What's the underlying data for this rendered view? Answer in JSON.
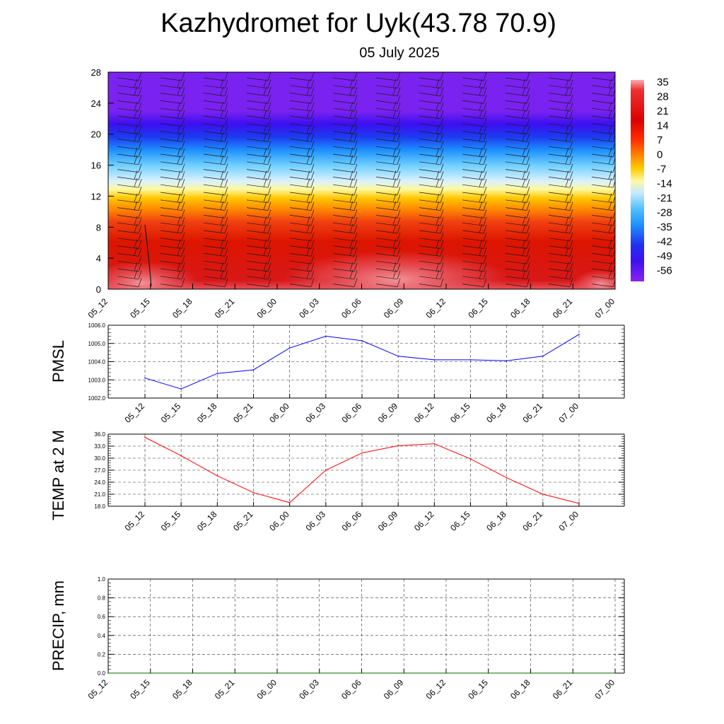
{
  "title": "Kazhydromet for Uyk(43.78 70.9)",
  "subtitle": "05 July 2025",
  "chart_data": [
    {
      "type": "heatmap",
      "categories": [
        "05_12",
        "05_15",
        "05_18",
        "05_21",
        "06_00",
        "06_03",
        "06_06",
        "06_09",
        "06_12",
        "06_15",
        "06_18",
        "06_21",
        "07_00"
      ],
      "yticks": [
        0,
        4,
        8,
        12,
        16,
        20,
        24,
        28
      ],
      "ylim": [
        0,
        28
      ],
      "colorbar": {
        "labels": [
          "35",
          "28",
          "21",
          "14",
          "7",
          "0",
          "-7",
          "-14",
          "-21",
          "-28",
          "-35",
          "-42",
          "-49",
          "-56"
        ]
      },
      "description": "temperature by height with wind barbs"
    },
    {
      "type": "line",
      "ylabel": "PMSL",
      "categories": [
        "05_12",
        "05_15",
        "05_18",
        "05_21",
        "06_00",
        "06_03",
        "06_06",
        "06_09",
        "06_12",
        "06_15",
        "06_18",
        "06_21",
        "07_00"
      ],
      "yticks": [
        "1002.0",
        "1003.0",
        "1004.0",
        "1005.0",
        "1006.0"
      ],
      "ylim": [
        1002.0,
        1006.0
      ],
      "values": [
        1003.1,
        1002.5,
        1003.35,
        1003.55,
        1004.75,
        1005.4,
        1005.15,
        1004.3,
        1004.1,
        1004.1,
        1004.05,
        1004.3,
        1005.5
      ],
      "color": "#0000ff"
    },
    {
      "type": "line",
      "ylabel": "TEMP at 2 M",
      "categories": [
        "05_12",
        "05_15",
        "05_18",
        "05_21",
        "06_00",
        "06_03",
        "06_06",
        "06_09",
        "06_12",
        "06_15",
        "06_18",
        "06_21",
        "07_00"
      ],
      "yticks": [
        "18.0",
        "21.0",
        "24.0",
        "27.0",
        "30.0",
        "33.0",
        "36.0"
      ],
      "ylim": [
        18.0,
        36.0
      ],
      "values": [
        35.2,
        30.6,
        25.6,
        21.4,
        18.9,
        27.0,
        31.3,
        33.1,
        33.6,
        29.8,
        25.1,
        21.0,
        18.7
      ],
      "color": "#ff0000"
    },
    {
      "type": "line",
      "ylabel": "PRECIP, mm",
      "categories": [
        "05_12",
        "05_15",
        "05_18",
        "05_21",
        "06_00",
        "06_03",
        "06_06",
        "06_09",
        "06_12",
        "06_15",
        "06_18",
        "06_21",
        "07_00"
      ],
      "yticks": [
        "0.0",
        "0.2",
        "0.4",
        "0.6",
        "0.8",
        "1.0"
      ],
      "ylim": [
        0.0,
        1.0
      ],
      "values": [
        0,
        0,
        0,
        0,
        0,
        0,
        0,
        0,
        0,
        0,
        0,
        0,
        0
      ],
      "color": "#006400"
    }
  ]
}
